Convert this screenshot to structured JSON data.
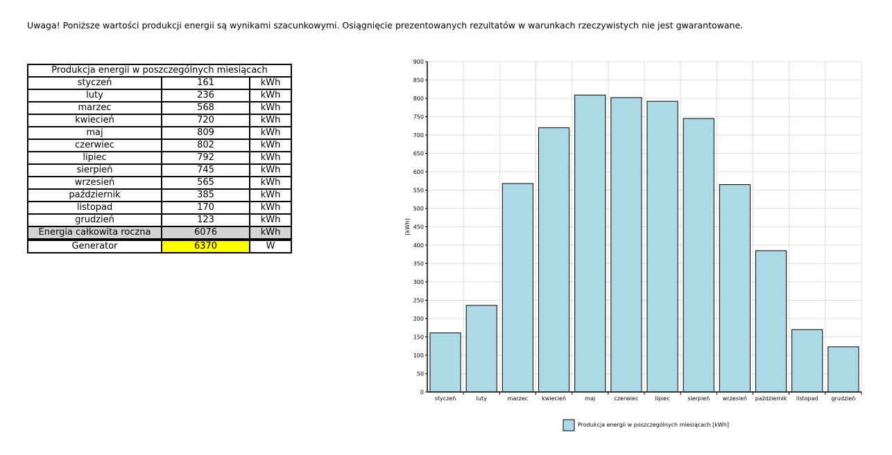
{
  "notice": "Uwaga! Poniższe wartości produkcji energii są wynikami szacunkowymi. Osiągnięcie prezentowanych rezultatów w warunkach rzeczywistych nie jest gwarantowane.",
  "table": {
    "title": "Produkcja energii w poszczególnych miesiącach",
    "rows": [
      {
        "month": "styczeń",
        "value": "161",
        "unit": "kWh"
      },
      {
        "month": "luty",
        "value": "236",
        "unit": "kWh"
      },
      {
        "month": "marzec",
        "value": "568",
        "unit": "kWh"
      },
      {
        "month": "kwiecień",
        "value": "720",
        "unit": "kWh"
      },
      {
        "month": "maj",
        "value": "809",
        "unit": "kWh"
      },
      {
        "month": "czerwiec",
        "value": "802",
        "unit": "kWh"
      },
      {
        "month": "lipiec",
        "value": "792",
        "unit": "kWh"
      },
      {
        "month": "sierpień",
        "value": "745",
        "unit": "kWh"
      },
      {
        "month": "wrzesień",
        "value": "565",
        "unit": "kWh"
      },
      {
        "month": "październik",
        "value": "385",
        "unit": "kWh"
      },
      {
        "month": "listopad",
        "value": "170",
        "unit": "kWh"
      },
      {
        "month": "grudzień",
        "value": "123",
        "unit": "kWh"
      }
    ],
    "total": {
      "label": "Energia całkowita roczna",
      "value": "6076",
      "unit": "kWh"
    },
    "generator": {
      "label": "Generator",
      "value": "6370",
      "unit": "W"
    }
  },
  "colors": {
    "bar_fill": "#add8e6",
    "generator_highlight": "#ffff00",
    "total_row": "#d3d3d3"
  },
  "chart_data": {
    "type": "bar",
    "categories": [
      "styczeń",
      "luty",
      "marzec",
      "kwiecień",
      "maj",
      "czerwiec",
      "lipiec",
      "sierpień",
      "wrzesień",
      "październik",
      "listopad",
      "grudzień"
    ],
    "series": [
      {
        "name": "Produkcja energii w poszczególnych miesiącach [kWh]",
        "values": [
          161,
          236,
          568,
          720,
          809,
          802,
          792,
          745,
          565,
          385,
          170,
          123
        ]
      }
    ],
    "ylabel": "[kWh]",
    "xlabel": "",
    "ylim": [
      0,
      900
    ],
    "yticks": [
      0,
      50,
      100,
      150,
      200,
      250,
      300,
      350,
      400,
      450,
      500,
      550,
      600,
      650,
      700,
      750,
      800,
      850,
      900
    ],
    "grid": true,
    "legend": "bottom"
  }
}
